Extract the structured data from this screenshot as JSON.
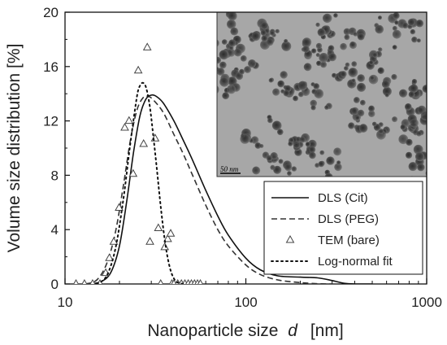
{
  "chart_data": {
    "type": "line",
    "title": "",
    "xlabel": {
      "text": "Nanoparticle size",
      "var": "d",
      "unit": "[nm]"
    },
    "ylabel": "Volume size distribution [%]",
    "xscale": "log",
    "xlim": [
      10,
      1000
    ],
    "ylim": [
      0,
      20
    ],
    "xticks": [
      10,
      100,
      1000
    ],
    "xtick_labels": [
      "10",
      "100",
      "1000"
    ],
    "yticks": [
      0,
      4,
      8,
      12,
      16,
      20
    ],
    "ytick_labels": [
      "0",
      "4",
      "8",
      "12",
      "16",
      "20"
    ],
    "grid": false,
    "legend_position": "bottom-right",
    "series": [
      {
        "name": "DLS (Cit)",
        "style": "solid",
        "color": "#111111",
        "x": [
          14,
          16,
          18,
          20,
          22,
          24,
          26,
          28,
          30,
          32,
          35,
          40,
          45,
          50,
          60,
          70,
          80,
          100,
          120,
          150,
          200,
          250,
          300,
          350,
          400,
          500
        ],
        "y": [
          0,
          0.2,
          0.9,
          2.8,
          6.2,
          9.8,
          12.4,
          13.6,
          13.9,
          13.8,
          13.3,
          12.0,
          10.6,
          9.3,
          6.9,
          5.0,
          3.6,
          1.9,
          1.05,
          0.6,
          0.5,
          0.45,
          0.25,
          0.05,
          0,
          0
        ]
      },
      {
        "name": "DLS (PEG)",
        "style": "dashed",
        "color": "#333333",
        "x": [
          13,
          15,
          17,
          19,
          21,
          23,
          25,
          27,
          29,
          31,
          35,
          40,
          45,
          50,
          60,
          70,
          80,
          100,
          120,
          150,
          200,
          250,
          300
        ],
        "y": [
          0,
          0.3,
          1.5,
          3.8,
          7.2,
          10.6,
          12.8,
          13.7,
          13.8,
          13.5,
          12.6,
          11.0,
          9.6,
          8.2,
          5.8,
          4.0,
          2.8,
          1.4,
          0.7,
          0.3,
          0.1,
          0.02,
          0
        ]
      },
      {
        "name": "TEM (bare)",
        "style": "markers",
        "marker": "triangle-open",
        "color": "#444444",
        "x": [
          11.5,
          12.8,
          14.2,
          15.6,
          16.8,
          17.6,
          18.6,
          19.9,
          21.4,
          22.6,
          23.8,
          25.4,
          27.2,
          28.5,
          29.5,
          31.5,
          32.8,
          33.8,
          35.6,
          37.0,
          38.4,
          39.0,
          40,
          42,
          44,
          46,
          48,
          50,
          52,
          54,
          56
        ],
        "y": [
          0,
          0,
          0,
          0,
          0.8,
          1.9,
          3.1,
          5.6,
          11.5,
          12.0,
          8.1,
          15.7,
          10.3,
          17.4,
          3.1,
          10.7,
          4.1,
          0,
          2.7,
          3.3,
          3.7,
          0,
          0,
          0,
          0,
          0,
          0,
          0,
          0,
          0,
          0
        ]
      },
      {
        "name": "Log-normal fit",
        "style": "dotted",
        "color": "#111111",
        "x": [
          15,
          17,
          19,
          21,
          23,
          25,
          26,
          27,
          28,
          29,
          30,
          32,
          34,
          36,
          38,
          40,
          42,
          45
        ],
        "y": [
          0,
          0.6,
          2.6,
          6.2,
          10.4,
          13.8,
          14.6,
          14.8,
          14.5,
          13.6,
          12.2,
          8.8,
          5.4,
          2.8,
          1.2,
          0.4,
          0.1,
          0
        ]
      }
    ]
  },
  "inset": {
    "kind": "TEM micrograph",
    "scale_bar_label": "50 nm"
  }
}
